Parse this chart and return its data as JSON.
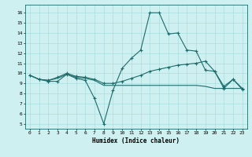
{
  "bg_color": "#cff0f0",
  "line_color": "#1e6b6b",
  "grid_color": "#aadddd",
  "xlabel": "Humidex (Indice chaleur)",
  "ylabel_ticks": [
    5,
    6,
    7,
    8,
    9,
    10,
    11,
    12,
    13,
    14,
    15,
    16
  ],
  "xlabel_ticks": [
    0,
    1,
    2,
    3,
    4,
    5,
    6,
    7,
    8,
    9,
    10,
    11,
    12,
    13,
    14,
    15,
    16,
    17,
    18,
    19,
    20,
    21,
    22,
    23
  ],
  "ylim": [
    4.5,
    16.8
  ],
  "xlim": [
    -0.5,
    23.5
  ],
  "line1_x": [
    0,
    1,
    2,
    3,
    4,
    5,
    6,
    7,
    8,
    9,
    10,
    11,
    12,
    13,
    14,
    15,
    16,
    17,
    18,
    19,
    20,
    21,
    22,
    23
  ],
  "line1_y": [
    9.8,
    9.4,
    9.2,
    9.2,
    9.9,
    9.5,
    9.3,
    7.5,
    5.0,
    8.3,
    10.5,
    11.5,
    12.3,
    16.0,
    16.0,
    13.9,
    14.0,
    12.3,
    12.2,
    10.3,
    10.2,
    8.5,
    9.4,
    8.4
  ],
  "line2_x": [
    0,
    1,
    2,
    3,
    4,
    5,
    6,
    7,
    8,
    9,
    10,
    11,
    12,
    13,
    14,
    15,
    16,
    17,
    18,
    19,
    20,
    21,
    22,
    23
  ],
  "line2_y": [
    9.8,
    9.4,
    9.3,
    9.6,
    10.0,
    9.7,
    9.6,
    9.4,
    9.0,
    9.0,
    9.2,
    9.5,
    9.8,
    10.2,
    10.4,
    10.6,
    10.8,
    10.9,
    11.0,
    11.2,
    10.2,
    8.7,
    9.4,
    8.5
  ],
  "line3_x": [
    0,
    1,
    2,
    3,
    4,
    5,
    6,
    7,
    8,
    9,
    10,
    11,
    12,
    13,
    14,
    15,
    16,
    17,
    18,
    19,
    20,
    21,
    22,
    23
  ],
  "line3_y": [
    9.8,
    9.4,
    9.3,
    9.5,
    9.9,
    9.6,
    9.5,
    9.3,
    8.8,
    8.8,
    8.8,
    8.8,
    8.8,
    8.8,
    8.8,
    8.8,
    8.8,
    8.8,
    8.8,
    8.7,
    8.5,
    8.5,
    8.5,
    8.5
  ]
}
